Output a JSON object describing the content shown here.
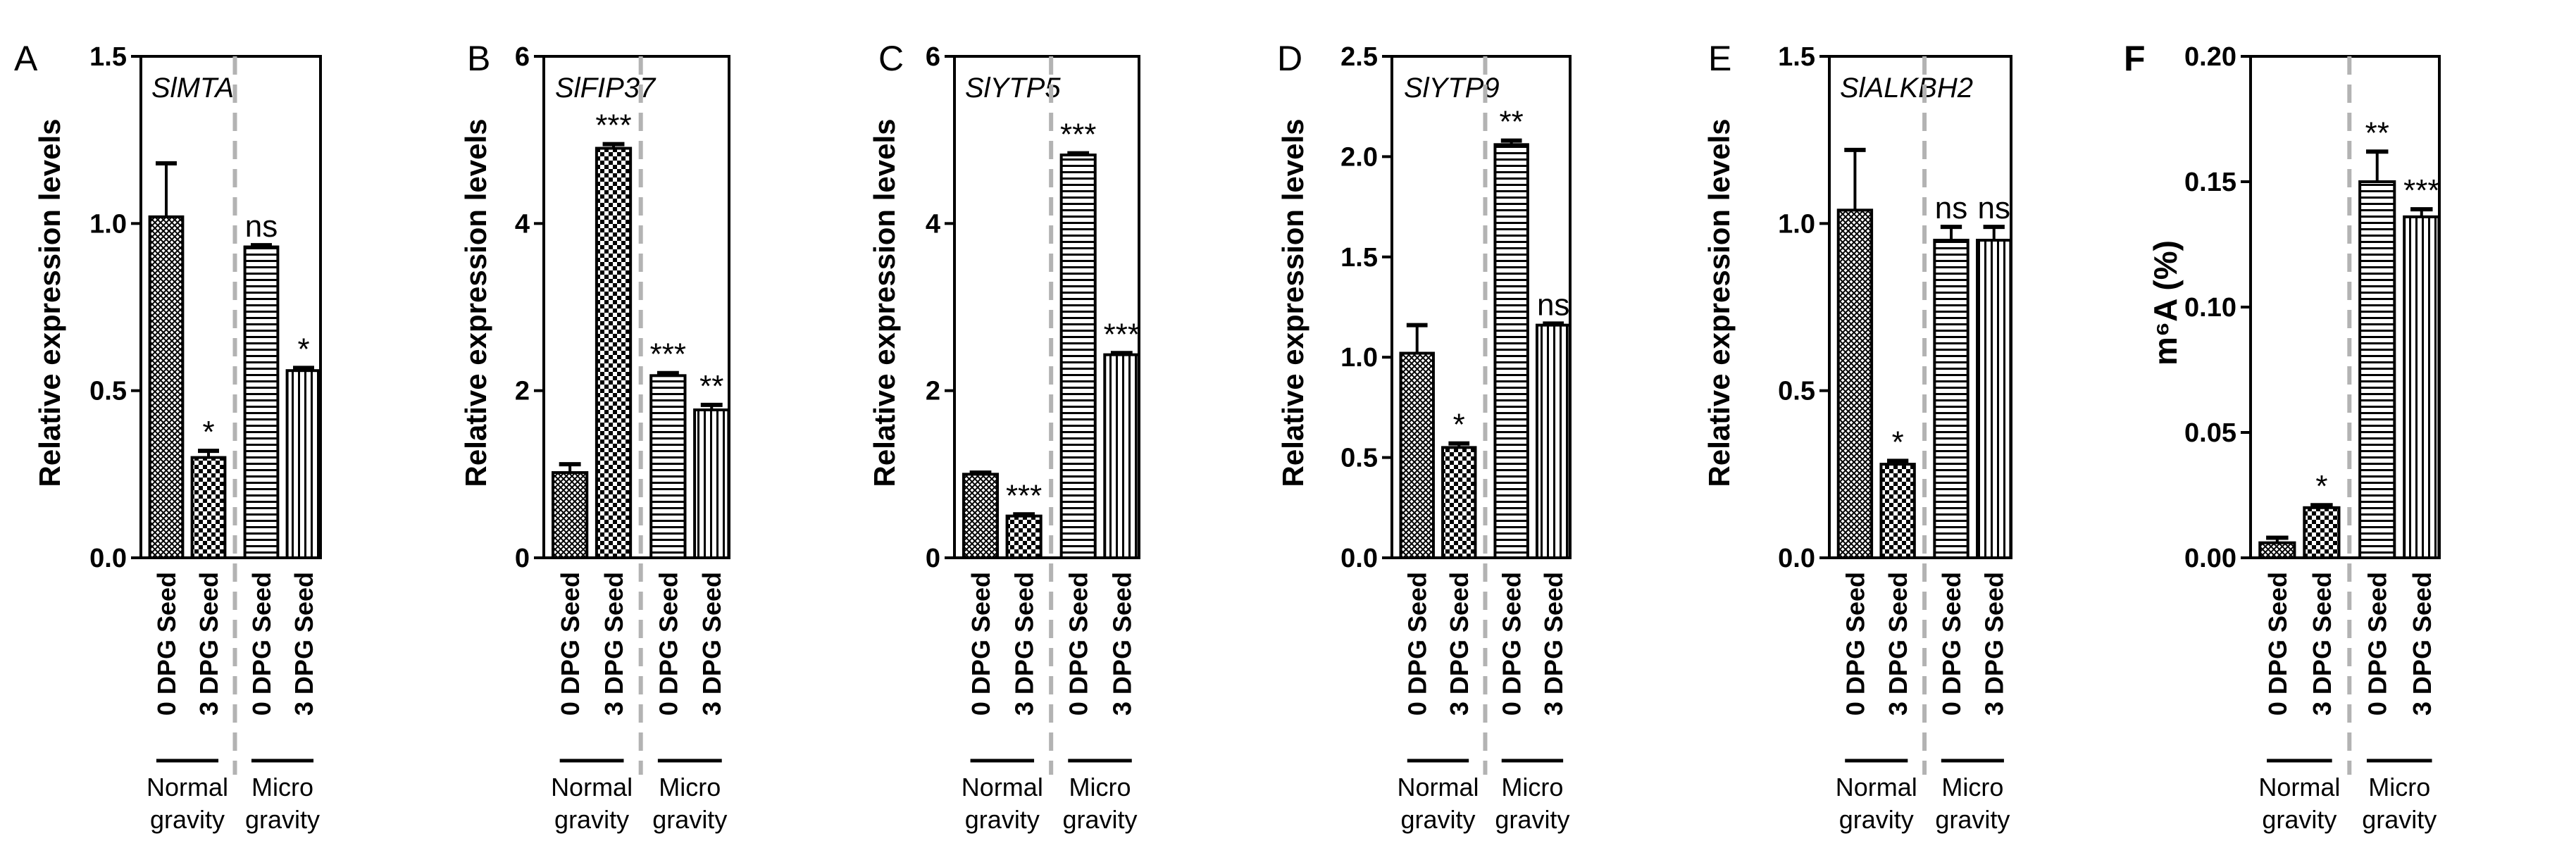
{
  "chart_data": [
    {
      "type": "bar",
      "panel_letter": "A",
      "title": "SlMTA",
      "ylabel": "Relative expression levels",
      "ylim": [
        0,
        1.5
      ],
      "yticks": [
        "0.0",
        "0.5",
        "1.0",
        "1.5"
      ],
      "categories": [
        "0 DPG Seed",
        "3 DPG Seed",
        "0 DPG Seed",
        "3 DPG Seed"
      ],
      "groups": [
        "Normal gravity",
        "Micro gravity"
      ],
      "values": [
        1.02,
        0.3,
        0.93,
        0.56
      ],
      "errors": [
        0.16,
        0.02,
        0.005,
        0.008
      ],
      "significance": [
        "",
        "*",
        "ns",
        "*"
      ]
    },
    {
      "type": "bar",
      "panel_letter": "B",
      "title": "SlFIP37",
      "ylabel": "Relative expression levels",
      "ylim": [
        0,
        6
      ],
      "yticks": [
        "0",
        "2",
        "4",
        "6"
      ],
      "categories": [
        "0 DPG Seed",
        "3 DPG Seed",
        "0 DPG Seed",
        "3 DPG Seed"
      ],
      "groups": [
        "Normal gravity",
        "Micro gravity"
      ],
      "values": [
        1.02,
        4.9,
        2.18,
        1.77
      ],
      "errors": [
        0.1,
        0.05,
        0.03,
        0.06
      ],
      "significance": [
        "",
        "***",
        "***",
        "**"
      ]
    },
    {
      "type": "bar",
      "panel_letter": "C",
      "title": "SlYTP5",
      "ylabel": "Relative expression levels",
      "ylim": [
        0,
        6
      ],
      "yticks": [
        "0",
        "2",
        "4",
        "6"
      ],
      "categories": [
        "0 DPG Seed",
        "3 DPG Seed",
        "0 DPG Seed",
        "3 DPG Seed"
      ],
      "groups": [
        "Normal gravity",
        "Micro gravity"
      ],
      "values": [
        1.0,
        0.5,
        4.82,
        2.43
      ],
      "errors": [
        0.02,
        0.02,
        0.02,
        0.02
      ],
      "significance": [
        "",
        "***",
        "***",
        "***"
      ]
    },
    {
      "type": "bar",
      "panel_letter": "D",
      "title": "SlYTP9",
      "ylabel": "Relative expression levels",
      "ylim": [
        0,
        2.5
      ],
      "yticks": [
        "0.0",
        "0.5",
        "1.0",
        "1.5",
        "2.0",
        "2.5"
      ],
      "categories": [
        "0 DPG Seed",
        "3 DPG Seed",
        "0 DPG Seed",
        "3 DPG Seed"
      ],
      "groups": [
        "Normal gravity",
        "Micro gravity"
      ],
      "values": [
        1.02,
        0.55,
        2.06,
        1.16
      ],
      "errors": [
        0.14,
        0.02,
        0.02,
        0.008
      ],
      "significance": [
        "",
        "*",
        "**",
        "ns"
      ]
    },
    {
      "type": "bar",
      "panel_letter": "E",
      "title": "SlALKBH2",
      "ylabel": "Relative expression levels",
      "ylim": [
        0,
        1.5
      ],
      "yticks": [
        "0.0",
        "0.5",
        "1.0",
        "1.5"
      ],
      "categories": [
        "0 DPG Seed",
        "3 DPG Seed",
        "0 DPG Seed",
        "3 DPG Seed"
      ],
      "groups": [
        "Normal gravity",
        "Micro gravity"
      ],
      "values": [
        1.04,
        0.28,
        0.95,
        0.95
      ],
      "errors": [
        0.18,
        0.01,
        0.04,
        0.04
      ],
      "significance": [
        "",
        "*",
        "ns",
        "ns"
      ]
    },
    {
      "type": "bar",
      "panel_letter": "F",
      "title": "",
      "ylabel": "m⁶A (%)",
      "ylim": [
        0,
        0.2
      ],
      "yticks": [
        "0.00",
        "0.05",
        "0.10",
        "0.15",
        "0.20"
      ],
      "categories": [
        "0 DPG Seed",
        "3 DPG Seed",
        "0 DPG Seed",
        "3 DPG Seed"
      ],
      "groups": [
        "Normal gravity",
        "Micro gravity"
      ],
      "values": [
        0.006,
        0.02,
        0.15,
        0.136
      ],
      "errors": [
        0.002,
        0.001,
        0.012,
        0.003
      ],
      "significance": [
        "",
        "*",
        "**",
        "***"
      ]
    }
  ]
}
